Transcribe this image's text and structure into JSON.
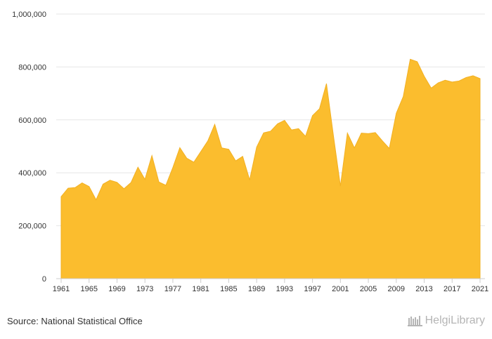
{
  "chart_data": {
    "type": "area",
    "title": "",
    "xlabel": "",
    "ylabel": "",
    "x": [
      1961,
      1962,
      1963,
      1964,
      1965,
      1966,
      1967,
      1968,
      1969,
      1970,
      1971,
      1972,
      1973,
      1974,
      1975,
      1976,
      1977,
      1978,
      1979,
      1980,
      1981,
      1982,
      1983,
      1984,
      1985,
      1986,
      1987,
      1988,
      1989,
      1990,
      1991,
      1992,
      1993,
      1994,
      1995,
      1996,
      1997,
      1998,
      1999,
      2000,
      2001,
      2002,
      2003,
      2004,
      2005,
      2006,
      2007,
      2008,
      2009,
      2010,
      2011,
      2012,
      2013,
      2014,
      2015,
      2016,
      2017,
      2018,
      2019,
      2020,
      2021
    ],
    "values": [
      310000,
      342000,
      344000,
      362000,
      348000,
      298000,
      357000,
      372000,
      364000,
      340000,
      363000,
      421000,
      375000,
      465000,
      365000,
      353000,
      420000,
      495000,
      455000,
      440000,
      480000,
      520000,
      583000,
      494000,
      489000,
      445000,
      462000,
      373000,
      497000,
      551000,
      557000,
      585000,
      598000,
      562000,
      567000,
      538000,
      616000,
      642000,
      737000,
      540000,
      350000,
      550000,
      494000,
      550000,
      548000,
      552000,
      521000,
      492000,
      625000,
      688000,
      829000,
      820000,
      765000,
      720000,
      740000,
      750000,
      743000,
      747000,
      760000,
      767000,
      756000
    ],
    "ylim": [
      0,
      1000000
    ],
    "yticks": [
      "0",
      "200,000",
      "400,000",
      "600,000",
      "800,000",
      "1,000,000"
    ],
    "xticks": [
      "1961",
      "1965",
      "1969",
      "1973",
      "1977",
      "1981",
      "1985",
      "1989",
      "1993",
      "1997",
      "2001",
      "2005",
      "2009",
      "2013",
      "2017",
      "2021"
    ],
    "color": "#fbbd2e",
    "grid": true,
    "legend": "none"
  },
  "footer": {
    "source": "Source: National Statistical Office",
    "brand_name": "HelgiLibrary",
    "brand_icon": "library-icon",
    "brand_color": "#b5b5b5"
  }
}
